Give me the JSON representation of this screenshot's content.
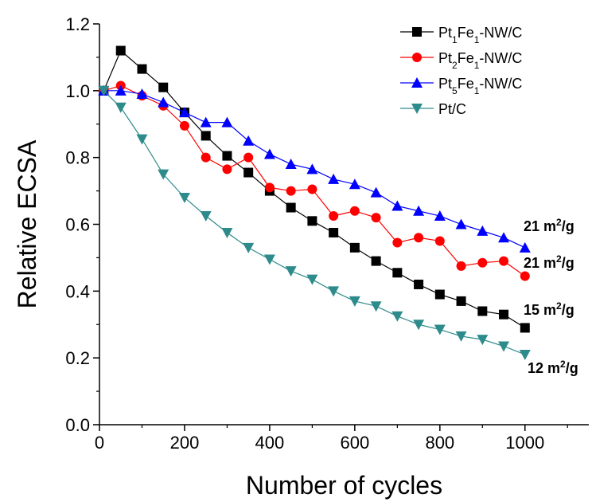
{
  "chart_data": {
    "type": "line",
    "title": "",
    "xlabel": "Number of cycles",
    "ylabel": "Relative ECSA",
    "xlim": [
      0,
      1150
    ],
    "ylim": [
      0,
      1.2
    ],
    "xticks": [
      0,
      200,
      400,
      600,
      800,
      1000
    ],
    "xtick_labels": [
      "0",
      "200",
      "400",
      "600",
      "800",
      "1000"
    ],
    "yticks": [
      0.0,
      0.2,
      0.4,
      0.6,
      0.8,
      1.0,
      1.2
    ],
    "ytick_labels": [
      "0.0",
      "0.2",
      "0.4",
      "0.6",
      "0.8",
      "1.0",
      "1.2"
    ],
    "grid": false,
    "legend_position": "top-right",
    "series": [
      {
        "name": "Pt1Fe1-NW/C",
        "name_parts": [
          [
            "Pt",
            ""
          ],
          [
            "1",
            "sub"
          ],
          [
            "Fe",
            ""
          ],
          [
            "1",
            "sub"
          ],
          [
            "-NW/C",
            ""
          ]
        ],
        "color": "#000000",
        "marker": "square",
        "x": [
          10,
          50,
          100,
          150,
          200,
          250,
          300,
          350,
          400,
          450,
          500,
          550,
          600,
          650,
          700,
          750,
          800,
          850,
          900,
          950,
          1000
        ],
        "y": [
          1.0,
          1.12,
          1.065,
          1.01,
          0.935,
          0.865,
          0.805,
          0.755,
          0.7,
          0.65,
          0.61,
          0.575,
          0.53,
          0.49,
          0.455,
          0.42,
          0.39,
          0.37,
          0.34,
          0.33,
          0.29
        ]
      },
      {
        "name": "Pt2Fe1-NW/C",
        "name_parts": [
          [
            "Pt",
            ""
          ],
          [
            "2",
            "sub"
          ],
          [
            "Fe",
            ""
          ],
          [
            "1",
            "sub"
          ],
          [
            "-NW/C",
            ""
          ]
        ],
        "color": "#ff0000",
        "marker": "circle",
        "x": [
          10,
          50,
          100,
          150,
          200,
          250,
          300,
          350,
          400,
          450,
          500,
          550,
          600,
          650,
          700,
          750,
          800,
          850,
          900,
          950,
          1000
        ],
        "y": [
          1.0,
          1.015,
          0.985,
          0.955,
          0.895,
          0.8,
          0.765,
          0.8,
          0.71,
          0.7,
          0.705,
          0.625,
          0.64,
          0.62,
          0.545,
          0.56,
          0.55,
          0.475,
          0.485,
          0.49,
          0.445
        ]
      },
      {
        "name": "Pt5Fe1-NW/C",
        "name_parts": [
          [
            "Pt",
            ""
          ],
          [
            "5",
            "sub"
          ],
          [
            "Fe",
            ""
          ],
          [
            "1",
            "sub"
          ],
          [
            "-NW/C",
            ""
          ]
        ],
        "color": "#0000ff",
        "marker": "triangle-up",
        "x": [
          10,
          50,
          100,
          150,
          200,
          250,
          300,
          350,
          400,
          450,
          500,
          550,
          600,
          650,
          700,
          750,
          800,
          850,
          900,
          950,
          1000
        ],
        "y": [
          1.0,
          1.0,
          0.99,
          0.965,
          0.935,
          0.905,
          0.905,
          0.85,
          0.81,
          0.78,
          0.765,
          0.735,
          0.72,
          0.695,
          0.655,
          0.64,
          0.625,
          0.6,
          0.58,
          0.56,
          0.53
        ]
      },
      {
        "name": "Pt/C",
        "name_parts": [
          [
            "Pt/C",
            ""
          ]
        ],
        "color": "#2e8b8b",
        "marker": "triangle-down",
        "x": [
          10,
          50,
          100,
          150,
          200,
          250,
          300,
          350,
          400,
          450,
          500,
          550,
          600,
          650,
          700,
          750,
          800,
          850,
          900,
          950,
          1000
        ],
        "y": [
          1.0,
          0.95,
          0.855,
          0.75,
          0.68,
          0.625,
          0.575,
          0.53,
          0.495,
          0.46,
          0.435,
          0.4,
          0.37,
          0.355,
          0.325,
          0.3,
          0.285,
          0.265,
          0.255,
          0.235,
          0.21
        ]
      }
    ],
    "annotations": [
      {
        "text": "21 m",
        "sup": "2",
        "suffix": "/g",
        "series": "Pt5Fe1-NW/C"
      },
      {
        "text": "21 m",
        "sup": "2",
        "suffix": "/g",
        "series": "Pt2Fe1-NW/C"
      },
      {
        "text": "15 m",
        "sup": "2",
        "suffix": "/g",
        "series": "Pt1Fe1-NW/C"
      },
      {
        "text": "12 m",
        "sup": "2",
        "suffix": "/g",
        "series": "Pt/C"
      }
    ]
  }
}
